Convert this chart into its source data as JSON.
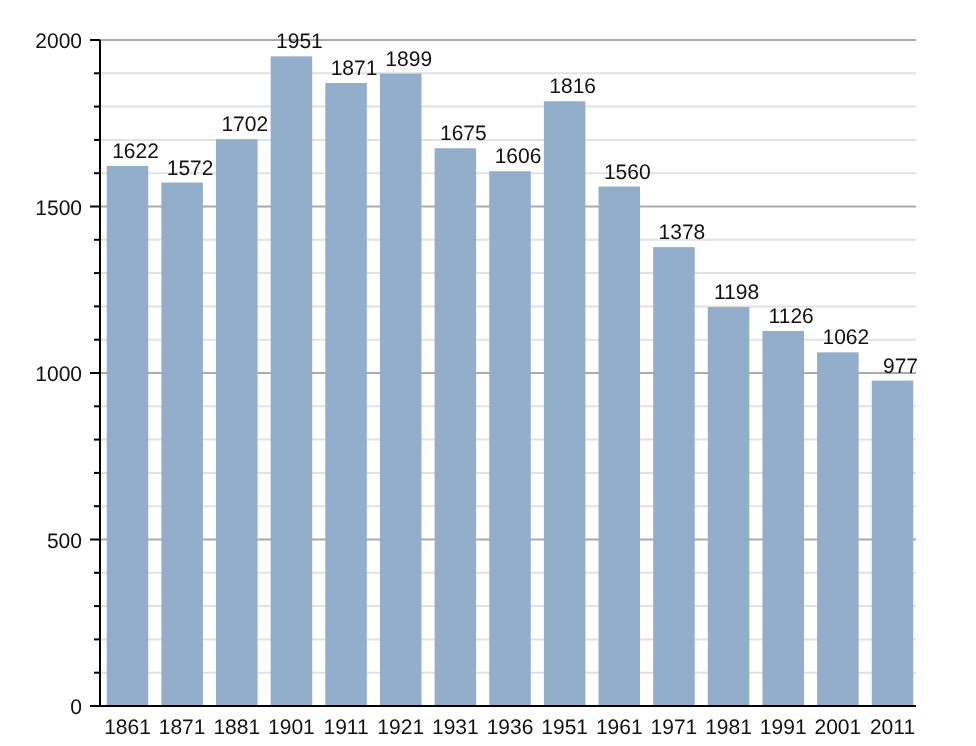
{
  "chart_data": {
    "type": "bar",
    "categories": [
      "1861",
      "1871",
      "1881",
      "1901",
      "1911",
      "1921",
      "1931",
      "1936",
      "1951",
      "1961",
      "1971",
      "1981",
      "1991",
      "2001",
      "2011"
    ],
    "values": [
      1622,
      1572,
      1702,
      1951,
      1871,
      1899,
      1675,
      1606,
      1816,
      1560,
      1378,
      1198,
      1126,
      1062,
      977
    ],
    "color": "#93aecb",
    "data_labels": true,
    "grid": true,
    "ylim": [
      0,
      2000
    ],
    "yticks": [
      0,
      {
        "value": 100,
        "label": null
      },
      {
        "value": 200,
        "label": null
      },
      {
        "value": 300,
        "label": null
      },
      {
        "value": 400,
        "label": null
      },
      500,
      {
        "value": 600,
        "label": null
      },
      {
        "value": 700,
        "label": null
      },
      {
        "value": 800,
        "label": null
      },
      {
        "value": 900,
        "label": null
      },
      1000,
      {
        "value": 1100,
        "label": null
      },
      {
        "value": 1200,
        "label": null
      },
      {
        "value": 1300,
        "label": null
      },
      {
        "value": 1400,
        "label": null
      },
      1500,
      {
        "value": 1600,
        "label": null
      },
      {
        "value": 1700,
        "label": null
      },
      {
        "value": 1800,
        "label": null
      },
      {
        "value": 1900,
        "label": null
      },
      2000
    ]
  }
}
